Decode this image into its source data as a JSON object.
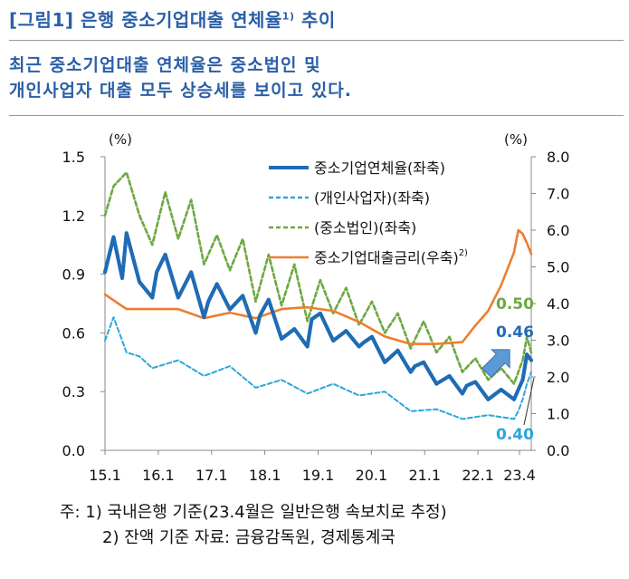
{
  "figure": {
    "title": "[그림1] 은행 중소기업대출 연체율",
    "title_sup": "1)",
    "title_suffix": " 추이",
    "subtitle": "최근 중소기업대출 연체율은 중소법인 및\n개인사업자 대출 모두 상승세를 보이고 있다."
  },
  "notes": {
    "line1": "주:  1)  국내은행 기준(23.4월은 일반은행 속보치로 추정)",
    "line2": "2)  잔액 기준    자료: 금융감독원, 경제통계국"
  },
  "colors": {
    "title": "#2a5fa8",
    "sme": "#1f6bb5",
    "individual": "#2aa6dc",
    "corporate": "#6ea842",
    "rate": "#ee7d31",
    "arrow": "#5b9bd5"
  },
  "chart_data": {
    "type": "line",
    "title": "",
    "y_left_unit": "(%)",
    "y_right_unit": "(%)",
    "ylim_left": [
      0,
      1.5
    ],
    "yticks_left": [
      "0.0",
      "0.3",
      "0.6",
      "0.9",
      "1.2",
      "1.5"
    ],
    "ylim_right": [
      0,
      8
    ],
    "yticks_right": [
      "0.0",
      "1.0",
      "2.0",
      "3.0",
      "4.0",
      "5.0",
      "6.0",
      "7.0",
      "8.0"
    ],
    "x_tick_labels": [
      "15.1",
      "16.1",
      "17.1",
      "18.1",
      "19.1",
      "20.1",
      "21.1",
      "22.1",
      "23.4"
    ],
    "x_range": [
      "2015-01",
      "2023-04"
    ],
    "grid": false,
    "legend_position": "top-right",
    "series": [
      {
        "name": "중소기업연체율(좌축)",
        "axis": "left",
        "style": "solid",
        "color": "#1f6bb5",
        "x": [
          "2015-01",
          "2015-03",
          "2015-05",
          "2015-06",
          "2015-09",
          "2015-12",
          "2016-01",
          "2016-03",
          "2016-06",
          "2016-09",
          "2016-12",
          "2017-01",
          "2017-03",
          "2017-06",
          "2017-09",
          "2017-12",
          "2018-01",
          "2018-03",
          "2018-06",
          "2018-09",
          "2018-12",
          "2019-01",
          "2019-03",
          "2019-06",
          "2019-09",
          "2019-12",
          "2020-01",
          "2020-03",
          "2020-06",
          "2020-09",
          "2020-12",
          "2021-01",
          "2021-03",
          "2021-06",
          "2021-09",
          "2021-12",
          "2022-01",
          "2022-03",
          "2022-06",
          "2022-09",
          "2022-12",
          "2023-01",
          "2023-02",
          "2023-03",
          "2023-04"
        ],
        "y": [
          0.91,
          1.09,
          0.88,
          1.11,
          0.86,
          0.78,
          0.91,
          1.0,
          0.78,
          0.91,
          0.68,
          0.76,
          0.85,
          0.72,
          0.79,
          0.6,
          0.69,
          0.77,
          0.57,
          0.62,
          0.53,
          0.67,
          0.7,
          0.56,
          0.61,
          0.53,
          0.55,
          0.58,
          0.45,
          0.51,
          0.4,
          0.43,
          0.45,
          0.34,
          0.38,
          0.29,
          0.33,
          0.35,
          0.26,
          0.31,
          0.26,
          0.31,
          0.36,
          0.49,
          0.46
        ]
      },
      {
        "name": "(개인사업자)(좌축)",
        "axis": "left",
        "style": "dashed",
        "color": "#2aa6dc",
        "x": [
          "2015-01",
          "2015-03",
          "2015-06",
          "2015-09",
          "2015-12",
          "2016-06",
          "2016-12",
          "2017-06",
          "2017-12",
          "2018-06",
          "2018-12",
          "2019-06",
          "2019-12",
          "2020-06",
          "2020-12",
          "2021-06",
          "2021-12",
          "2022-06",
          "2022-12",
          "2023-01",
          "2023-02",
          "2023-03",
          "2023-04"
        ],
        "y": [
          0.56,
          0.68,
          0.5,
          0.48,
          0.42,
          0.46,
          0.38,
          0.43,
          0.32,
          0.36,
          0.29,
          0.34,
          0.28,
          0.3,
          0.2,
          0.21,
          0.16,
          0.18,
          0.16,
          0.2,
          0.26,
          0.34,
          0.4
        ]
      },
      {
        "name": "(중소법인)(좌축)",
        "axis": "left",
        "style": "dashed",
        "color": "#6ea842",
        "x": [
          "2015-01",
          "2015-03",
          "2015-06",
          "2015-09",
          "2015-12",
          "2016-03",
          "2016-06",
          "2016-09",
          "2016-12",
          "2017-03",
          "2017-06",
          "2017-09",
          "2017-12",
          "2018-03",
          "2018-06",
          "2018-09",
          "2018-12",
          "2019-03",
          "2019-06",
          "2019-09",
          "2019-12",
          "2020-03",
          "2020-06",
          "2020-09",
          "2020-12",
          "2021-03",
          "2021-06",
          "2021-09",
          "2021-12",
          "2022-03",
          "2022-06",
          "2022-09",
          "2022-12",
          "2023-01",
          "2023-02",
          "2023-03",
          "2023-04"
        ],
        "y": [
          1.2,
          1.35,
          1.42,
          1.2,
          1.05,
          1.32,
          1.08,
          1.28,
          0.95,
          1.1,
          0.92,
          1.08,
          0.76,
          1.0,
          0.74,
          0.95,
          0.66,
          0.87,
          0.7,
          0.83,
          0.64,
          0.76,
          0.6,
          0.7,
          0.52,
          0.66,
          0.5,
          0.58,
          0.4,
          0.47,
          0.36,
          0.42,
          0.34,
          0.4,
          0.46,
          0.58,
          0.5
        ]
      },
      {
        "name": "중소기업대출금리(우축)",
        "name_sup": "2)",
        "axis": "right",
        "style": "solid",
        "color": "#ee7d31",
        "x": [
          "2015-01",
          "2015-06",
          "2015-12",
          "2016-06",
          "2016-12",
          "2017-06",
          "2017-12",
          "2018-06",
          "2018-12",
          "2019-06",
          "2019-12",
          "2020-06",
          "2020-12",
          "2021-06",
          "2021-12",
          "2022-03",
          "2022-06",
          "2022-09",
          "2022-12",
          "2023-01",
          "2023-02",
          "2023-03",
          "2023-04"
        ],
        "y": [
          4.25,
          3.85,
          3.85,
          3.85,
          3.6,
          3.75,
          3.6,
          3.85,
          3.9,
          3.8,
          3.5,
          3.1,
          2.9,
          2.9,
          2.95,
          3.4,
          3.8,
          4.5,
          5.4,
          6.0,
          5.9,
          5.65,
          5.35
        ]
      }
    ],
    "annotations": [
      {
        "text": "0.50",
        "color": "#6ea842"
      },
      {
        "text": "0.46",
        "color": "#1f6bb5"
      },
      {
        "text": "0.40",
        "color": "#2aa6dc"
      }
    ]
  }
}
